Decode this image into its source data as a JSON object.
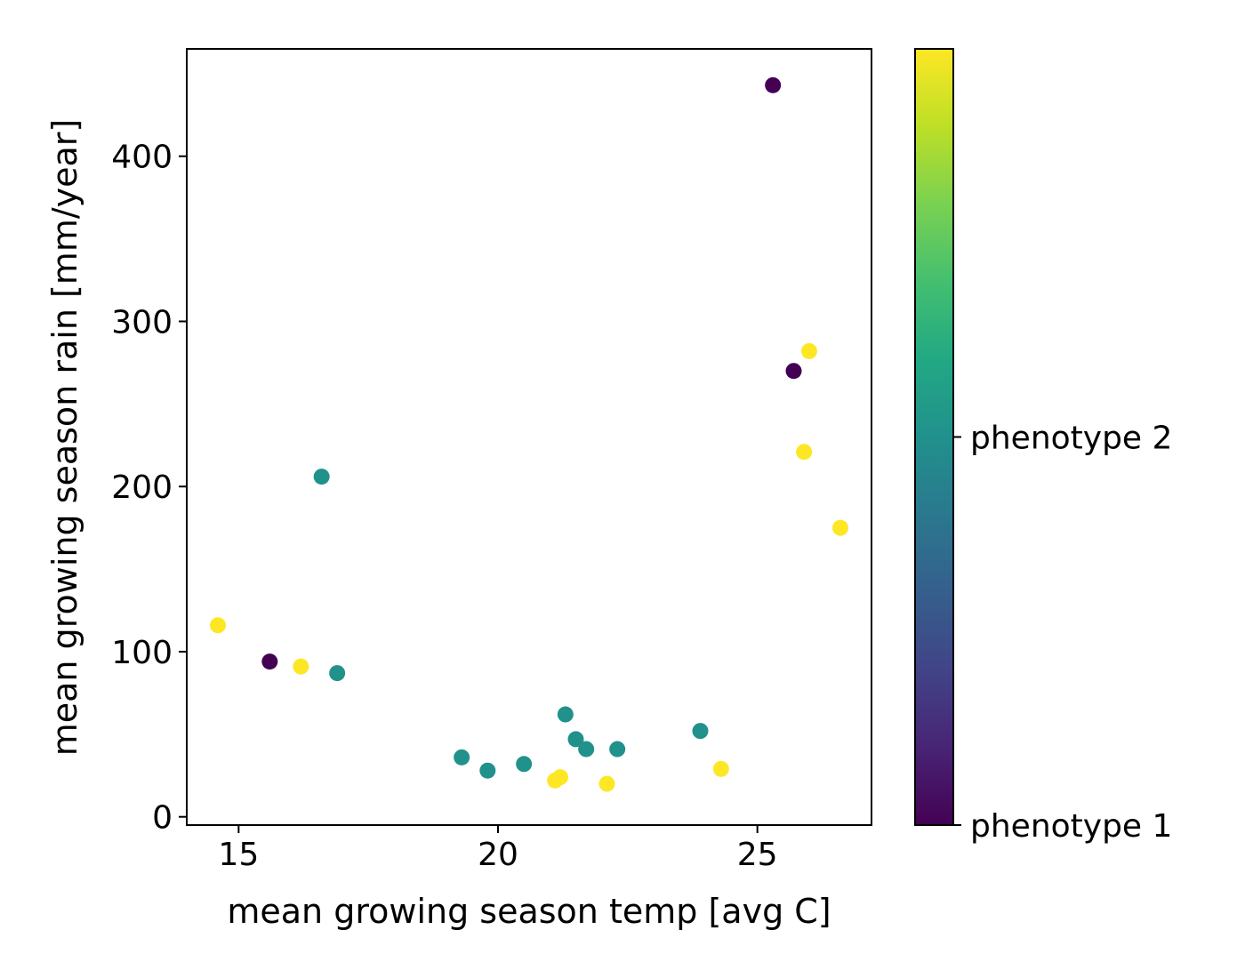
{
  "chart_data": {
    "type": "scatter",
    "title": "",
    "xlabel": "mean growing season temp [avg C]",
    "ylabel": "mean growing season rain [mm/year]",
    "xlim": [
      14,
      27.2
    ],
    "ylim": [
      -5,
      465
    ],
    "xticks": [
      15,
      20,
      25
    ],
    "yticks": [
      0,
      100,
      200,
      300,
      400
    ],
    "grid": false,
    "colorbar": {
      "colormap": "viridis",
      "range": [
        0,
        2
      ],
      "ticks": [
        {
          "value": 0,
          "label": "phenotype 1"
        },
        {
          "value": 1,
          "label": "phenotype 2"
        }
      ]
    },
    "colors": {
      "phenotype_1": "#440154",
      "phenotype_2": "#21918c",
      "phenotype_3": "#fde725"
    },
    "series": [
      {
        "phenotype_index": 0,
        "color": "#440154",
        "points": [
          {
            "x": 25.3,
            "y": 443
          },
          {
            "x": 25.7,
            "y": 270
          },
          {
            "x": 15.6,
            "y": 94
          }
        ]
      },
      {
        "phenotype_index": 1,
        "color": "#21918c",
        "points": [
          {
            "x": 16.6,
            "y": 206
          },
          {
            "x": 16.9,
            "y": 87
          },
          {
            "x": 19.3,
            "y": 36
          },
          {
            "x": 19.8,
            "y": 28
          },
          {
            "x": 20.5,
            "y": 32
          },
          {
            "x": 21.3,
            "y": 62
          },
          {
            "x": 21.5,
            "y": 47
          },
          {
            "x": 21.7,
            "y": 41
          },
          {
            "x": 22.3,
            "y": 41
          },
          {
            "x": 23.9,
            "y": 52
          }
        ]
      },
      {
        "phenotype_index": 2,
        "color": "#fde725",
        "points": [
          {
            "x": 14.6,
            "y": 116
          },
          {
            "x": 16.2,
            "y": 91
          },
          {
            "x": 21.1,
            "y": 22
          },
          {
            "x": 21.2,
            "y": 24
          },
          {
            "x": 22.1,
            "y": 20
          },
          {
            "x": 24.3,
            "y": 29
          },
          {
            "x": 25.9,
            "y": 221
          },
          {
            "x": 26.0,
            "y": 282
          },
          {
            "x": 26.6,
            "y": 175
          }
        ]
      }
    ]
  }
}
